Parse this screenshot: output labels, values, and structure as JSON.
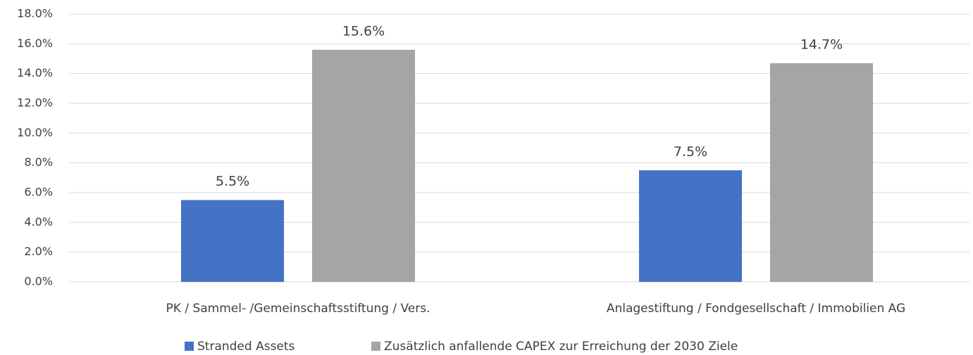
{
  "chart_data": {
    "type": "bar",
    "categories": [
      "PK / Sammel- /Gemeinschaftsstiftung / Vers.",
      "Anlagestiftung / Fondgesellschaft / Immobilien AG"
    ],
    "series": [
      {
        "name": "Stranded Assets",
        "color": "#4472c4",
        "values": [
          5.5,
          7.5
        ],
        "value_labels": [
          "5.5%",
          "7.5%"
        ]
      },
      {
        "name": "Zusätzlich anfallende CAPEX zur Erreichung der 2030 Ziele",
        "color": "#a5a5a5",
        "values": [
          15.6,
          14.7
        ],
        "value_labels": [
          "15.6%",
          "14.7%"
        ]
      }
    ],
    "ylim": [
      0,
      18
    ],
    "yticks": [
      {
        "value": 0,
        "label": "0.0%"
      },
      {
        "value": 2,
        "label": "2.0%"
      },
      {
        "value": 4,
        "label": "4.0%"
      },
      {
        "value": 6,
        "label": "6.0%"
      },
      {
        "value": 8,
        "label": "8.0%"
      },
      {
        "value": 10,
        "label": "10.0%"
      },
      {
        "value": 12,
        "label": "12.0%"
      },
      {
        "value": 14,
        "label": "14.0%"
      },
      {
        "value": 16,
        "label": "16.0%"
      },
      {
        "value": 18,
        "label": "18.0%"
      }
    ],
    "grid": true,
    "legend": "bottom"
  }
}
